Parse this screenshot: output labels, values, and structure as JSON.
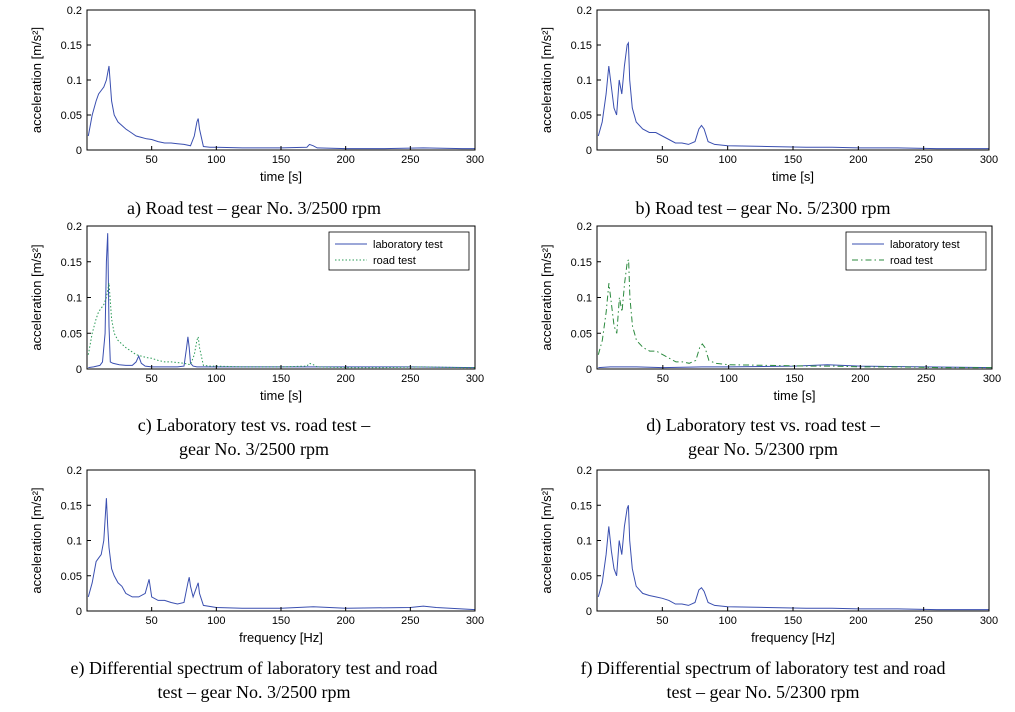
{
  "figure": {
    "panels": [
      {
        "caption": [
          "a) Road test – gear No. 3/2500 rpm"
        ]
      },
      {
        "caption": [
          "b) Road test – gear No. 5/2300 rpm"
        ]
      },
      {
        "caption": [
          "c) Laboratory test vs. road test –",
          "gear No. 3/2500 rpm"
        ]
      },
      {
        "caption": [
          "d) Laboratory test vs. road test –",
          "gear No. 5/2300 rpm"
        ]
      },
      {
        "caption": [
          "e) Differential spectrum of laboratory test and road",
          "test – gear No. 3/2500 rpm"
        ]
      },
      {
        "caption": [
          "f) Differential spectrum of laboratory test and road",
          "test – gear No. 5/2300 rpm"
        ]
      }
    ]
  },
  "colors": {
    "lab": "#3a4fb0",
    "road_c": "#2a9a56",
    "road_d": "#2b8a3e",
    "axis": "#000000"
  },
  "chart_data": [
    {
      "type": "line",
      "xlabel": "time [s]",
      "ylabel": "acceleration [m/s²]",
      "xlim": [
        0,
        300
      ],
      "ylim": [
        0,
        0.2
      ],
      "xticks": [
        50,
        100,
        150,
        200,
        250,
        300
      ],
      "yticks": [
        0,
        0.05,
        0.1,
        0.15,
        0.2
      ],
      "grid": false,
      "series": [
        {
          "style": "solid",
          "color": "#3a4fb0",
          "x": [
            1,
            4,
            7,
            9,
            11,
            13,
            15,
            17,
            19,
            21,
            24,
            27,
            30,
            34,
            38,
            42,
            46,
            50,
            55,
            60,
            65,
            70,
            75,
            80,
            83,
            85,
            86,
            87,
            90,
            95,
            100,
            120,
            150,
            170,
            172,
            175,
            178,
            200,
            230,
            260,
            290,
            300
          ],
          "y": [
            0.02,
            0.05,
            0.07,
            0.08,
            0.085,
            0.09,
            0.1,
            0.12,
            0.07,
            0.05,
            0.04,
            0.035,
            0.03,
            0.025,
            0.02,
            0.018,
            0.016,
            0.015,
            0.012,
            0.01,
            0.01,
            0.009,
            0.008,
            0.006,
            0.02,
            0.04,
            0.045,
            0.03,
            0.005,
            0.004,
            0.004,
            0.003,
            0.003,
            0.004,
            0.008,
            0.006,
            0.003,
            0.002,
            0.002,
            0.003,
            0.002,
            0.002
          ]
        }
      ]
    },
    {
      "type": "line",
      "xlabel": "time [s]",
      "ylabel": "acceleration [m/s²]",
      "xlim": [
        0,
        300
      ],
      "ylim": [
        0,
        0.2
      ],
      "xticks": [
        50,
        100,
        150,
        200,
        250,
        300
      ],
      "yticks": [
        0,
        0.05,
        0.1,
        0.15,
        0.2
      ],
      "grid": false,
      "series": [
        {
          "style": "solid",
          "color": "#3a4fb0",
          "x": [
            1,
            4,
            7,
            9,
            11,
            13,
            15,
            17,
            19,
            21,
            23,
            24,
            25,
            27,
            30,
            35,
            40,
            45,
            50,
            55,
            60,
            65,
            70,
            75,
            78,
            80,
            82,
            85,
            90,
            100,
            130,
            160,
            180,
            200,
            230,
            260,
            290,
            300
          ],
          "y": [
            0.02,
            0.04,
            0.08,
            0.12,
            0.09,
            0.06,
            0.05,
            0.1,
            0.08,
            0.12,
            0.15,
            0.153,
            0.1,
            0.06,
            0.04,
            0.03,
            0.025,
            0.025,
            0.02,
            0.015,
            0.01,
            0.01,
            0.008,
            0.012,
            0.03,
            0.035,
            0.03,
            0.012,
            0.008,
            0.006,
            0.005,
            0.004,
            0.004,
            0.003,
            0.003,
            0.002,
            0.002,
            0.002
          ]
        }
      ]
    },
    {
      "type": "line",
      "xlabel": "time [s]",
      "ylabel": "acceleration [m/s²]",
      "xlim": [
        0,
        300
      ],
      "ylim": [
        0,
        0.2
      ],
      "xticks": [
        50,
        100,
        150,
        200,
        250,
        300
      ],
      "yticks": [
        0,
        0.05,
        0.1,
        0.15,
        0.2
      ],
      "grid": false,
      "legend": {
        "position": "top-right",
        "entries": [
          "laboratory test",
          "road test"
        ]
      },
      "series": [
        {
          "name": "laboratory test",
          "style": "solid",
          "color": "#3a4fb0",
          "x": [
            1,
            5,
            10,
            12,
            14,
            15,
            16,
            17,
            18,
            20,
            25,
            30,
            35,
            38,
            40,
            42,
            45,
            50,
            60,
            70,
            75,
            77,
            78,
            79,
            80,
            82,
            85,
            100,
            150,
            175,
            200,
            250,
            300
          ],
          "y": [
            0.002,
            0.003,
            0.005,
            0.01,
            0.05,
            0.15,
            0.19,
            0.06,
            0.01,
            0.008,
            0.006,
            0.005,
            0.005,
            0.01,
            0.018,
            0.008,
            0.004,
            0.003,
            0.003,
            0.003,
            0.004,
            0.03,
            0.045,
            0.03,
            0.008,
            0.004,
            0.003,
            0.003,
            0.003,
            0.003,
            0.003,
            0.003,
            0.002
          ]
        },
        {
          "name": "road test",
          "style": "dotted",
          "color": "#2a9a56",
          "x": [
            1,
            4,
            7,
            9,
            11,
            13,
            15,
            17,
            19,
            21,
            24,
            27,
            30,
            34,
            38,
            42,
            46,
            50,
            55,
            60,
            65,
            70,
            75,
            80,
            83,
            85,
            86,
            87,
            90,
            95,
            100,
            120,
            150,
            170,
            172,
            175,
            178,
            200,
            230,
            260,
            290,
            300
          ],
          "y": [
            0.02,
            0.05,
            0.07,
            0.08,
            0.085,
            0.09,
            0.1,
            0.12,
            0.07,
            0.05,
            0.04,
            0.035,
            0.03,
            0.025,
            0.02,
            0.018,
            0.016,
            0.015,
            0.012,
            0.01,
            0.01,
            0.009,
            0.008,
            0.006,
            0.02,
            0.04,
            0.045,
            0.03,
            0.005,
            0.004,
            0.004,
            0.003,
            0.003,
            0.004,
            0.008,
            0.006,
            0.003,
            0.002,
            0.002,
            0.003,
            0.002,
            0.002
          ]
        }
      ]
    },
    {
      "type": "line",
      "xlabel": "time [s]",
      "ylabel": "acceleration [m/s²]",
      "xlim": [
        0,
        300
      ],
      "ylim": [
        0,
        0.2
      ],
      "xticks": [
        50,
        100,
        150,
        200,
        250,
        300
      ],
      "yticks": [
        0,
        0.05,
        0.1,
        0.15,
        0.2
      ],
      "grid": false,
      "legend": {
        "position": "top-right",
        "entries": [
          "laboratory test",
          "road test"
        ]
      },
      "series": [
        {
          "name": "laboratory test",
          "style": "solid",
          "color": "#3a4fb0",
          "x": [
            1,
            10,
            20,
            30,
            50,
            80,
            100,
            150,
            175,
            200,
            250,
            300
          ],
          "y": [
            0.002,
            0.003,
            0.003,
            0.003,
            0.002,
            0.003,
            0.003,
            0.004,
            0.006,
            0.004,
            0.003,
            0.002
          ]
        },
        {
          "name": "road test",
          "style": "dashdot",
          "color": "#2b8a3e",
          "x": [
            1,
            4,
            7,
            9,
            11,
            13,
            15,
            17,
            19,
            21,
            23,
            24,
            25,
            27,
            30,
            35,
            40,
            45,
            50,
            55,
            60,
            65,
            70,
            75,
            78,
            80,
            82,
            85,
            90,
            100,
            130,
            160,
            180,
            200,
            230,
            260,
            290,
            300
          ],
          "y": [
            0.02,
            0.04,
            0.08,
            0.12,
            0.09,
            0.06,
            0.05,
            0.1,
            0.08,
            0.12,
            0.15,
            0.153,
            0.1,
            0.06,
            0.04,
            0.03,
            0.025,
            0.025,
            0.02,
            0.015,
            0.01,
            0.01,
            0.008,
            0.012,
            0.03,
            0.035,
            0.03,
            0.012,
            0.008,
            0.006,
            0.005,
            0.004,
            0.004,
            0.003,
            0.003,
            0.002,
            0.002,
            0.002
          ]
        }
      ]
    },
    {
      "type": "line",
      "xlabel": "frequency [Hz]",
      "ylabel": "acceleration [m/s²]",
      "xlim": [
        0,
        300
      ],
      "ylim": [
        0,
        0.2
      ],
      "xticks": [
        50,
        100,
        150,
        200,
        250,
        300
      ],
      "yticks": [
        0,
        0.05,
        0.1,
        0.15,
        0.2
      ],
      "grid": false,
      "series": [
        {
          "style": "solid",
          "color": "#3a4fb0",
          "x": [
            1,
            4,
            7,
            9,
            11,
            13,
            15,
            16,
            17,
            19,
            21,
            24,
            27,
            30,
            35,
            40,
            45,
            48,
            50,
            55,
            60,
            65,
            70,
            75,
            78,
            79,
            80,
            82,
            85,
            86,
            87,
            90,
            100,
            120,
            150,
            175,
            200,
            250,
            260,
            270,
            300
          ],
          "y": [
            0.02,
            0.04,
            0.07,
            0.075,
            0.08,
            0.1,
            0.16,
            0.12,
            0.09,
            0.06,
            0.05,
            0.04,
            0.035,
            0.025,
            0.02,
            0.02,
            0.025,
            0.045,
            0.02,
            0.015,
            0.015,
            0.012,
            0.01,
            0.012,
            0.04,
            0.048,
            0.035,
            0.02,
            0.035,
            0.04,
            0.025,
            0.008,
            0.005,
            0.004,
            0.004,
            0.006,
            0.004,
            0.005,
            0.007,
            0.005,
            0.002
          ]
        }
      ]
    },
    {
      "type": "line",
      "xlabel": "frequency [Hz]",
      "ylabel": "acceleration [m/s²]",
      "xlim": [
        0,
        300
      ],
      "ylim": [
        0,
        0.2
      ],
      "xticks": [
        50,
        100,
        150,
        200,
        250,
        300
      ],
      "yticks": [
        0,
        0.05,
        0.1,
        0.15,
        0.2
      ],
      "grid": false,
      "series": [
        {
          "style": "solid",
          "color": "#3a4fb0",
          "x": [
            1,
            4,
            7,
            9,
            11,
            13,
            15,
            17,
            19,
            21,
            23,
            24,
            25,
            27,
            30,
            35,
            40,
            45,
            50,
            55,
            60,
            65,
            70,
            75,
            78,
            80,
            82,
            85,
            90,
            100,
            130,
            160,
            180,
            200,
            230,
            260,
            290,
            300
          ],
          "y": [
            0.02,
            0.04,
            0.08,
            0.12,
            0.085,
            0.06,
            0.05,
            0.1,
            0.08,
            0.12,
            0.145,
            0.15,
            0.1,
            0.06,
            0.035,
            0.025,
            0.022,
            0.02,
            0.018,
            0.015,
            0.01,
            0.01,
            0.008,
            0.012,
            0.03,
            0.033,
            0.028,
            0.012,
            0.008,
            0.006,
            0.005,
            0.004,
            0.004,
            0.003,
            0.003,
            0.002,
            0.002,
            0.002
          ]
        }
      ]
    }
  ]
}
